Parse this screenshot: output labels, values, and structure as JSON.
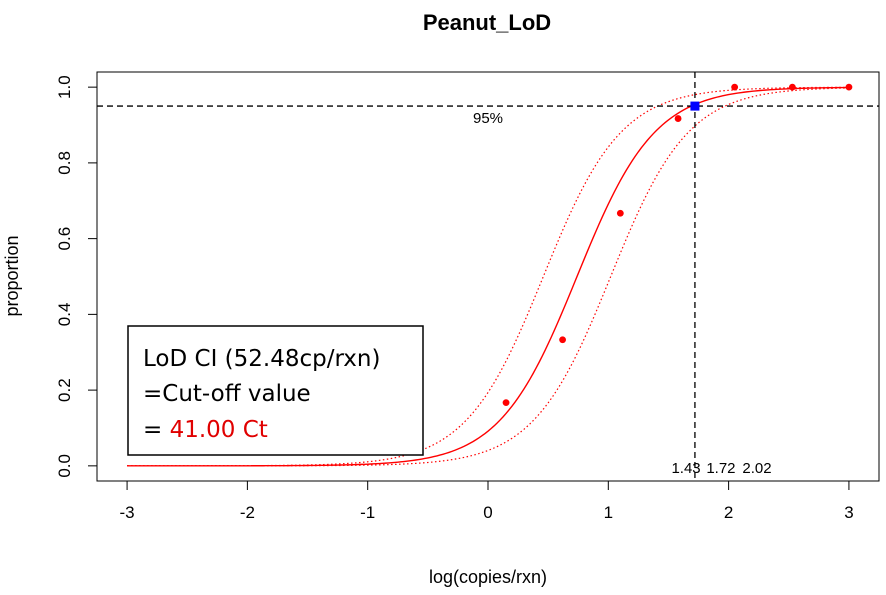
{
  "chart_data": {
    "type": "line",
    "title": "Peanut_LoD",
    "xlabel": "log(copies/rxn)",
    "ylabel": "proportion",
    "xlim": [
      -3.25,
      3.25
    ],
    "ylim": [
      -0.04,
      1.04
    ],
    "x_ticks": [
      -3,
      -2,
      -1,
      0,
      1,
      2,
      3
    ],
    "x_tick_labels": [
      "-3",
      "-2",
      "-1",
      "0",
      "1",
      "2",
      "3"
    ],
    "y_ticks": [
      0.0,
      0.2,
      0.4,
      0.6,
      0.8,
      1.0
    ],
    "y_tick_labels": [
      "0.0",
      "0.2",
      "0.4",
      "0.6",
      "0.8",
      "1.0"
    ],
    "points": {
      "x": [
        0.15,
        0.62,
        1.1,
        1.58,
        2.05,
        2.53,
        3.0
      ],
      "y": [
        0.167,
        0.333,
        0.667,
        0.917,
        1.0,
        1.0,
        1.0
      ]
    },
    "fit": {
      "midpoint": 0.74,
      "slope": 3.1
    },
    "ci_lower": {
      "midpoint": 1.02,
      "slope": 3.1
    },
    "ci_upper": {
      "midpoint": 0.46,
      "slope": 3.1
    },
    "hline": {
      "y": 0.95,
      "label": "95%"
    },
    "vline": {
      "x": 1.72
    },
    "lod_point": {
      "x": 1.72,
      "y": 0.95
    },
    "vline_labels": [
      {
        "x": 1.43,
        "text": "1.43"
      },
      {
        "x": 1.72,
        "text": "1.72"
      },
      {
        "x": 2.02,
        "text": "2.02"
      }
    ],
    "legend": {
      "line1": "LoD CI (52.48cp/rxn)",
      "line2": "=Cut-off value",
      "line3_prefix": "= ",
      "line3_value": "41.00 Ct"
    },
    "colors": {
      "fit": "#ff0000",
      "points": "#ff0000",
      "lod_point": "#0000ff",
      "reference_lines": "#000000",
      "legend_highlight": "#e00000"
    },
    "grid": false
  }
}
